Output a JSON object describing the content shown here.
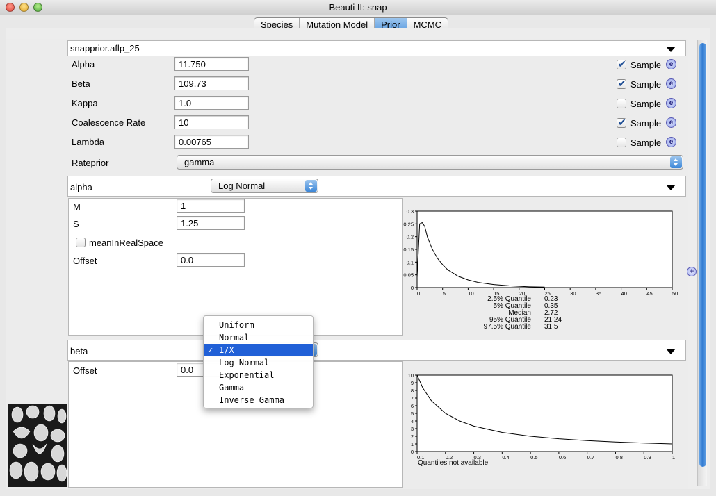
{
  "window": {
    "title": "Beauti II: snap"
  },
  "tabs": [
    {
      "label": "Species"
    },
    {
      "label": "Mutation Model"
    },
    {
      "label": "Prior"
    },
    {
      "label": "MCMC"
    }
  ],
  "prior_header": {
    "title": "snapprior.aflp_25"
  },
  "params": [
    {
      "label": "Alpha",
      "value": "11.750",
      "sample_checked": true,
      "sample_label": "Sample"
    },
    {
      "label": "Beta",
      "value": "109.73",
      "sample_checked": true,
      "sample_label": "Sample"
    },
    {
      "label": "Kappa",
      "value": "1.0",
      "sample_checked": false,
      "sample_label": "Sample"
    },
    {
      "label": "Coalescence Rate",
      "value": "10",
      "sample_checked": true,
      "sample_label": "Sample"
    },
    {
      "label": "Lambda",
      "value": "0.00765",
      "sample_checked": false,
      "sample_label": "Sample"
    }
  ],
  "info_icon": {
    "glyph": "e"
  },
  "rateprior": {
    "label": "Rateprior",
    "value": "gamma"
  },
  "alpha_section": {
    "name": "alpha",
    "distribution": "Log Normal",
    "fields": [
      {
        "label": "M",
        "value": "1"
      },
      {
        "label": "S",
        "value": "1.25"
      }
    ],
    "checkbox_label": "meanInRealSpace",
    "checkbox_checked": false,
    "offset_label": "Offset",
    "offset_value": "0.0",
    "quantiles": [
      {
        "label": "2.5% Quantile",
        "value": "0.23"
      },
      {
        "label": "5% Quantile",
        "value": "0.35"
      },
      {
        "label": "Median",
        "value": "2.72"
      },
      {
        "label": "95% Quantile",
        "value": "21.24"
      },
      {
        "label": "97.5% Quantile",
        "value": "31.5"
      }
    ]
  },
  "beta_section": {
    "name": "beta",
    "offset_label": "Offset",
    "offset_value": "0.0",
    "quantiles_note": "Quantiles not available"
  },
  "dropdown_menu": {
    "items": [
      "Uniform",
      "Normal",
      "1/X",
      "Log Normal",
      "Exponential",
      "Gamma",
      "Inverse Gamma"
    ],
    "selected_index": 2,
    "check_glyph": "✓"
  },
  "colors": {
    "selection": "#2160d7",
    "tab_active": "#5a9be0"
  },
  "chart_data": [
    {
      "type": "line",
      "title": "",
      "xlabel": "",
      "ylabel": "",
      "xlim": [
        0,
        50
      ],
      "ylim": [
        0,
        0.3
      ],
      "x_ticks": [
        "0",
        "5",
        "10",
        "15",
        "20",
        "25",
        "30",
        "35",
        "40",
        "45",
        "50"
      ],
      "y_ticks": [
        "0",
        "0.05",
        "0.1",
        "0.15",
        "0.2",
        "0.25",
        "0.3"
      ],
      "grid": false,
      "series": [
        {
          "x": [
            0,
            0.5,
            1,
            1.5,
            2,
            3,
            4,
            5,
            6,
            8,
            10,
            12,
            15,
            18,
            20,
            22,
            25
          ],
          "y": [
            0.04,
            0.25,
            0.255,
            0.24,
            0.2,
            0.15,
            0.115,
            0.09,
            0.07,
            0.045,
            0.03,
            0.02,
            0.012,
            0.007,
            0.005,
            0.003,
            0.002
          ]
        }
      ]
    },
    {
      "type": "line",
      "title": "",
      "xlabel": "",
      "ylabel": "",
      "xlim": [
        0.1,
        1
      ],
      "ylim": [
        0,
        10
      ],
      "x_ticks": [
        "0.1",
        "0.2",
        "0.3",
        "0.4",
        "0.5",
        "0.6",
        "0.7",
        "0.8",
        "0.9",
        "1"
      ],
      "y_ticks": [
        "0",
        "1",
        "2",
        "3",
        "4",
        "5",
        "6",
        "7",
        "8",
        "9",
        "10"
      ],
      "grid": false,
      "series": [
        {
          "x": [
            0.1,
            0.12,
            0.15,
            0.2,
            0.25,
            0.3,
            0.4,
            0.5,
            0.6,
            0.7,
            0.8,
            0.9,
            1.0
          ],
          "y": [
            10,
            8.33,
            6.67,
            5,
            4,
            3.33,
            2.5,
            2,
            1.67,
            1.43,
            1.25,
            1.11,
            1
          ]
        }
      ]
    }
  ]
}
